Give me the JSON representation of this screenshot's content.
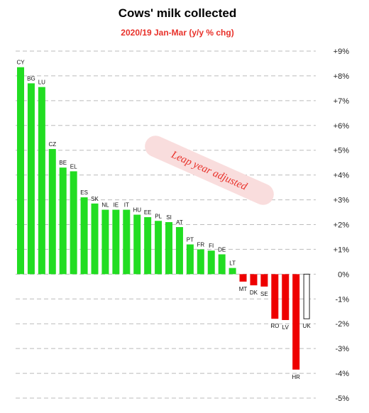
{
  "chart_data": {
    "type": "bar",
    "title": "Cows' milk collected",
    "subtitle": "2020/19  Jan-Mar  (y/y % chg)",
    "categories": [
      "CY",
      "BG",
      "LU",
      "CZ",
      "BE",
      "EL",
      "ES",
      "SK",
      "NL",
      "IE",
      "IT",
      "HU",
      "EE",
      "PL",
      "SI",
      "AT",
      "PT",
      "FR",
      "FI",
      "DE",
      "LT",
      "MT",
      "DK",
      "SE",
      "RO",
      "LV",
      "HR",
      "UK"
    ],
    "values": [
      8.35,
      7.7,
      7.55,
      5.05,
      4.3,
      4.15,
      3.1,
      2.85,
      2.6,
      2.6,
      2.6,
      2.4,
      2.3,
      2.15,
      2.1,
      1.9,
      1.2,
      1.0,
      0.95,
      0.8,
      0.25,
      -0.3,
      -0.45,
      -0.5,
      -1.8,
      -1.85,
      -3.85,
      -1.8
    ],
    "bar_style": [
      "fill",
      "fill",
      "fill",
      "fill",
      "fill",
      "fill",
      "fill",
      "fill",
      "fill",
      "fill",
      "fill",
      "fill",
      "fill",
      "fill",
      "fill",
      "fill",
      "fill",
      "fill",
      "fill",
      "fill",
      "fill",
      "fill",
      "fill",
      "fill",
      "fill",
      "fill",
      "fill",
      "outline"
    ],
    "ylim": [
      -5,
      9
    ],
    "yticks": [
      {
        "v": 9,
        "label": "+9%"
      },
      {
        "v": 8,
        "label": "+8%"
      },
      {
        "v": 7,
        "label": "+7%"
      },
      {
        "v": 6,
        "label": "+6%"
      },
      {
        "v": 5,
        "label": "+5%"
      },
      {
        "v": 4,
        "label": "+4%"
      },
      {
        "v": 3,
        "label": "+3%"
      },
      {
        "v": 2,
        "label": "+2%"
      },
      {
        "v": 1,
        "label": "+1%"
      },
      {
        "v": 0,
        "label": "0%"
      },
      {
        "v": -1,
        "label": "-1%"
      },
      {
        "v": -2,
        "label": "-2%"
      },
      {
        "v": -3,
        "label": "-3%"
      },
      {
        "v": -4,
        "label": "-4%"
      },
      {
        "v": -5,
        "label": "-5%"
      }
    ],
    "grid": true,
    "colors": {
      "positive": "#22dd22",
      "negative": "#ee0000",
      "outline": "#222222",
      "grid": "#bbbbbb"
    },
    "annotation": "Leap year adjusted"
  }
}
